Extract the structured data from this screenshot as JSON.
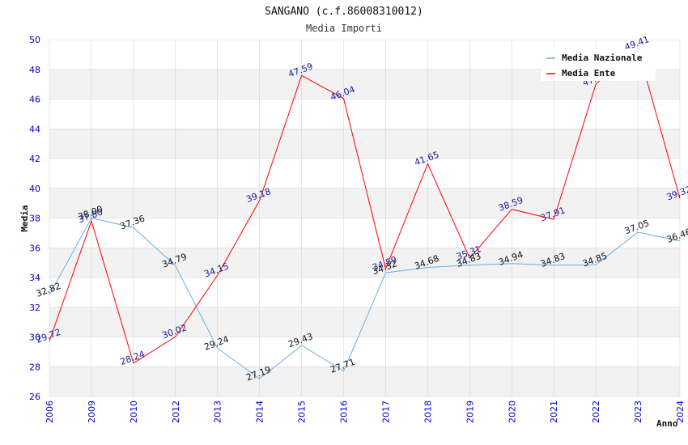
{
  "chart_data": {
    "type": "line",
    "title": "SANGANO (c.f.86008310012)",
    "subtitle": "Media Importi",
    "xlabel": "Anno",
    "ylabel": "Media",
    "categories": [
      "2006",
      "2009",
      "2010",
      "2012",
      "2013",
      "2014",
      "2015",
      "2016",
      "2017",
      "2018",
      "2019",
      "2020",
      "2021",
      "2022",
      "2023",
      "2024"
    ],
    "ylim": [
      26,
      50
    ],
    "yticks": [
      26,
      28,
      30,
      32,
      34,
      36,
      38,
      40,
      42,
      44,
      46,
      48,
      50
    ],
    "grid": true,
    "legend_position": "top-right",
    "series": [
      {
        "name": "Media Nazionale",
        "color": "#6aaee8",
        "label_color": "#111111",
        "values": [
          32.82,
          38.0,
          37.36,
          34.79,
          29.24,
          27.19,
          29.43,
          27.71,
          34.32,
          34.68,
          34.83,
          34.94,
          34.83,
          34.85,
          37.05,
          36.46
        ]
      },
      {
        "name": "Media Ente",
        "color": "#ff0000",
        "label_color": "#1a1a9a",
        "values": [
          29.72,
          37.8,
          28.24,
          30.02,
          34.15,
          39.18,
          47.59,
          46.04,
          34.59,
          41.65,
          35.31,
          38.59,
          37.91,
          47.0,
          49.41,
          39.32
        ]
      }
    ]
  },
  "colors": {
    "band": "#f2f2f2",
    "grid": "#d0d0d0",
    "axis_text": "#0000cc"
  }
}
